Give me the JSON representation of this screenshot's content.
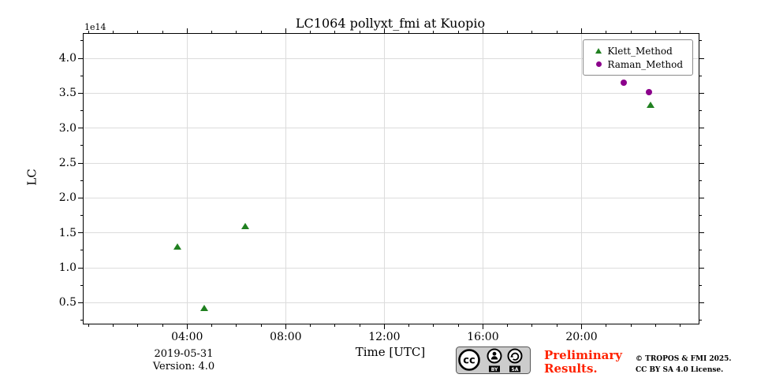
{
  "figure": {
    "title": "LC1064 pollyxt_fmi at Kuopio",
    "offset_text": "1e14",
    "ylabel": "LC",
    "xlabel": "Time [UTC]"
  },
  "footer": {
    "date": "2019-05-31",
    "version": "Version: 4.0",
    "preliminary": [
      "Preliminary",
      "Results."
    ],
    "copyright": [
      "© TROPOS & FMI 2025.",
      "CC BY SA 4.0 License."
    ],
    "badge": {
      "cc": "cc",
      "by": "BY",
      "sa": "SA"
    }
  },
  "colors": {
    "klett_green": "#208020",
    "raman_purple": "#8b008b",
    "grid": "#dcdcdc",
    "preliminary_red": "#ff2200"
  },
  "chart_data": {
    "type": "scatter",
    "title": "LC1064 pollyxt_fmi at Kuopio",
    "xlabel": "Time [UTC]",
    "ylabel": "LC",
    "y_offset_factor": "1e14",
    "xlim_hours": [
      -0.2,
      24.75
    ],
    "ylim": [
      0.2,
      4.35
    ],
    "grid": true,
    "legend_position": "upper right",
    "x_major_ticks": [
      {
        "hour": 4,
        "label": "04:00"
      },
      {
        "hour": 8,
        "label": "08:00"
      },
      {
        "hour": 12,
        "label": "12:00"
      },
      {
        "hour": 16,
        "label": "16:00"
      },
      {
        "hour": 20,
        "label": "20:00"
      }
    ],
    "x_minor_step_hours": 1,
    "y_major_ticks": [
      {
        "value": 0.5,
        "label": "0.5"
      },
      {
        "value": 1.0,
        "label": "1.0"
      },
      {
        "value": 1.5,
        "label": "1.5"
      },
      {
        "value": 2.0,
        "label": "2.0"
      },
      {
        "value": 2.5,
        "label": "2.5"
      },
      {
        "value": 3.0,
        "label": "3.0"
      },
      {
        "value": 3.5,
        "label": "3.5"
      },
      {
        "value": 4.0,
        "label": "4.0"
      }
    ],
    "y_minor_step": 0.25,
    "series": [
      {
        "name": "Klett_Method",
        "marker": "triangle",
        "color": "#208020",
        "points": [
          {
            "hour": 3.6,
            "value": 1.31
          },
          {
            "hour": 4.7,
            "value": 0.42
          },
          {
            "hour": 6.35,
            "value": 1.6
          },
          {
            "hour": 22.8,
            "value": 3.33
          }
        ]
      },
      {
        "name": "Raman_Method",
        "marker": "circle",
        "color": "#8b008b",
        "points": [
          {
            "hour": 21.7,
            "value": 3.65
          },
          {
            "hour": 22.75,
            "value": 3.51
          }
        ]
      }
    ]
  }
}
